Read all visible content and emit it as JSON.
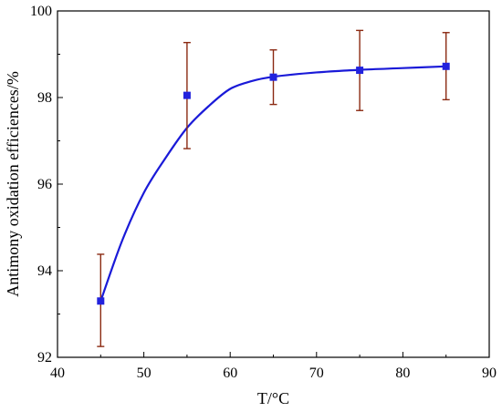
{
  "chart_data": {
    "type": "scatter",
    "title": "",
    "xlabel": "T/°C",
    "ylabel": "Antimony oxidation efficiences/%",
    "xlim": [
      40,
      90
    ],
    "ylim": [
      92,
      100
    ],
    "xticks": [
      40,
      50,
      60,
      70,
      80,
      90
    ],
    "yticks": [
      92,
      94,
      96,
      98,
      100
    ],
    "x_tick_labels": [
      "40",
      "50",
      "60",
      "70",
      "80",
      "90"
    ],
    "y_tick_labels": [
      "92",
      "94",
      "96",
      "98",
      "100"
    ],
    "grid": false,
    "series": [
      {
        "points": [
          {
            "x": 45,
            "y": 93.3,
            "err_low": 92.25,
            "err_high": 94.38
          },
          {
            "x": 55,
            "y": 98.05,
            "err_low": 96.82,
            "err_high": 99.27
          },
          {
            "x": 65,
            "y": 98.47,
            "err_low": 97.84,
            "err_high": 99.1
          },
          {
            "x": 75,
            "y": 98.63,
            "err_low": 97.7,
            "err_high": 99.55
          },
          {
            "x": 85,
            "y": 98.72,
            "err_low": 97.95,
            "err_high": 99.5
          }
        ],
        "marker_color": "#2222dd",
        "errorbar_color": "#8b2a12"
      }
    ],
    "fit_curve": {
      "x": [
        45,
        47.5,
        50,
        52.5,
        55,
        57.5,
        60,
        62.5,
        65,
        70,
        75,
        80,
        85
      ],
      "y": [
        93.3,
        94.7,
        95.8,
        96.6,
        97.3,
        97.8,
        98.2,
        98.38,
        98.48,
        98.58,
        98.64,
        98.68,
        98.72
      ],
      "color": "#1a1ad8"
    }
  }
}
